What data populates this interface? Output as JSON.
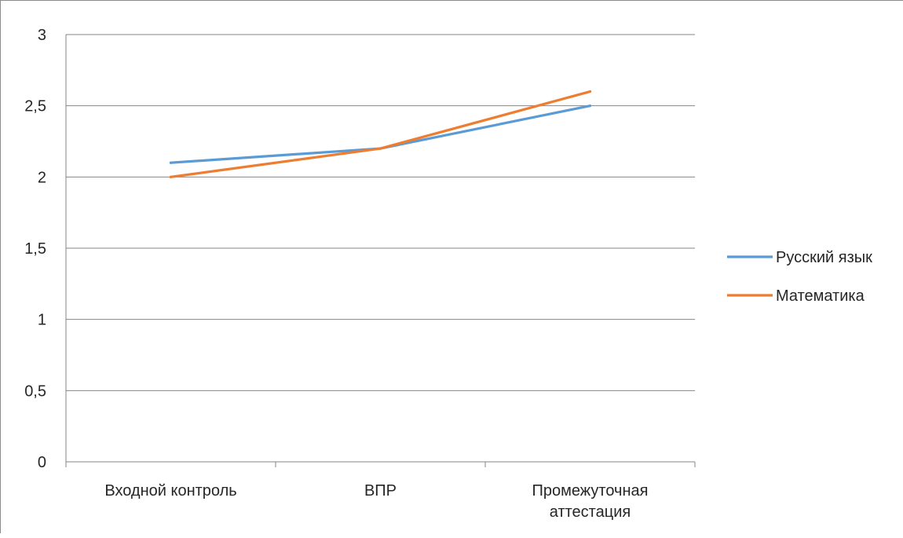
{
  "chart_data": {
    "type": "line",
    "title": "",
    "xlabel": "",
    "ylabel": "",
    "categories": [
      [
        "Входной контроль"
      ],
      [
        "ВПР"
      ],
      [
        "Промежуточная",
        "аттестация"
      ]
    ],
    "y_ticks": [
      "0",
      "0,5",
      "1",
      "1,5",
      "2",
      "2,5",
      "3"
    ],
    "y_tick_values": [
      0,
      0.5,
      1,
      1.5,
      2,
      2.5,
      3
    ],
    "ylim": [
      0,
      3
    ],
    "grid": true,
    "legend_position": "right",
    "series": [
      {
        "name": "Русский язык",
        "values": [
          2.1,
          2.2,
          2.5
        ],
        "color": "#5B9BD5"
      },
      {
        "name": "Математика",
        "values": [
          2.0,
          2.2,
          2.6
        ],
        "color": "#ED7D31"
      }
    ]
  }
}
